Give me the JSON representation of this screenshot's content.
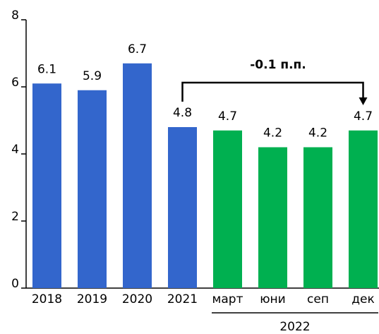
{
  "chart_data": {
    "type": "bar",
    "categories": [
      "2018",
      "2019",
      "2020",
      "2021",
      "март",
      "юни",
      "сеп",
      "дек"
    ],
    "values": [
      6.1,
      5.9,
      6.7,
      4.8,
      4.7,
      4.2,
      4.2,
      4.7
    ],
    "colors": [
      "#3366cc",
      "#3366cc",
      "#3366cc",
      "#3366cc",
      "#00b050",
      "#00b050",
      "#00b050",
      "#00b050"
    ],
    "group_label": "2022",
    "annotation": "-0.1 п.п.",
    "ylim": [
      0,
      8
    ],
    "yticks": [
      0,
      2,
      4,
      6,
      8
    ],
    "grid": false
  }
}
